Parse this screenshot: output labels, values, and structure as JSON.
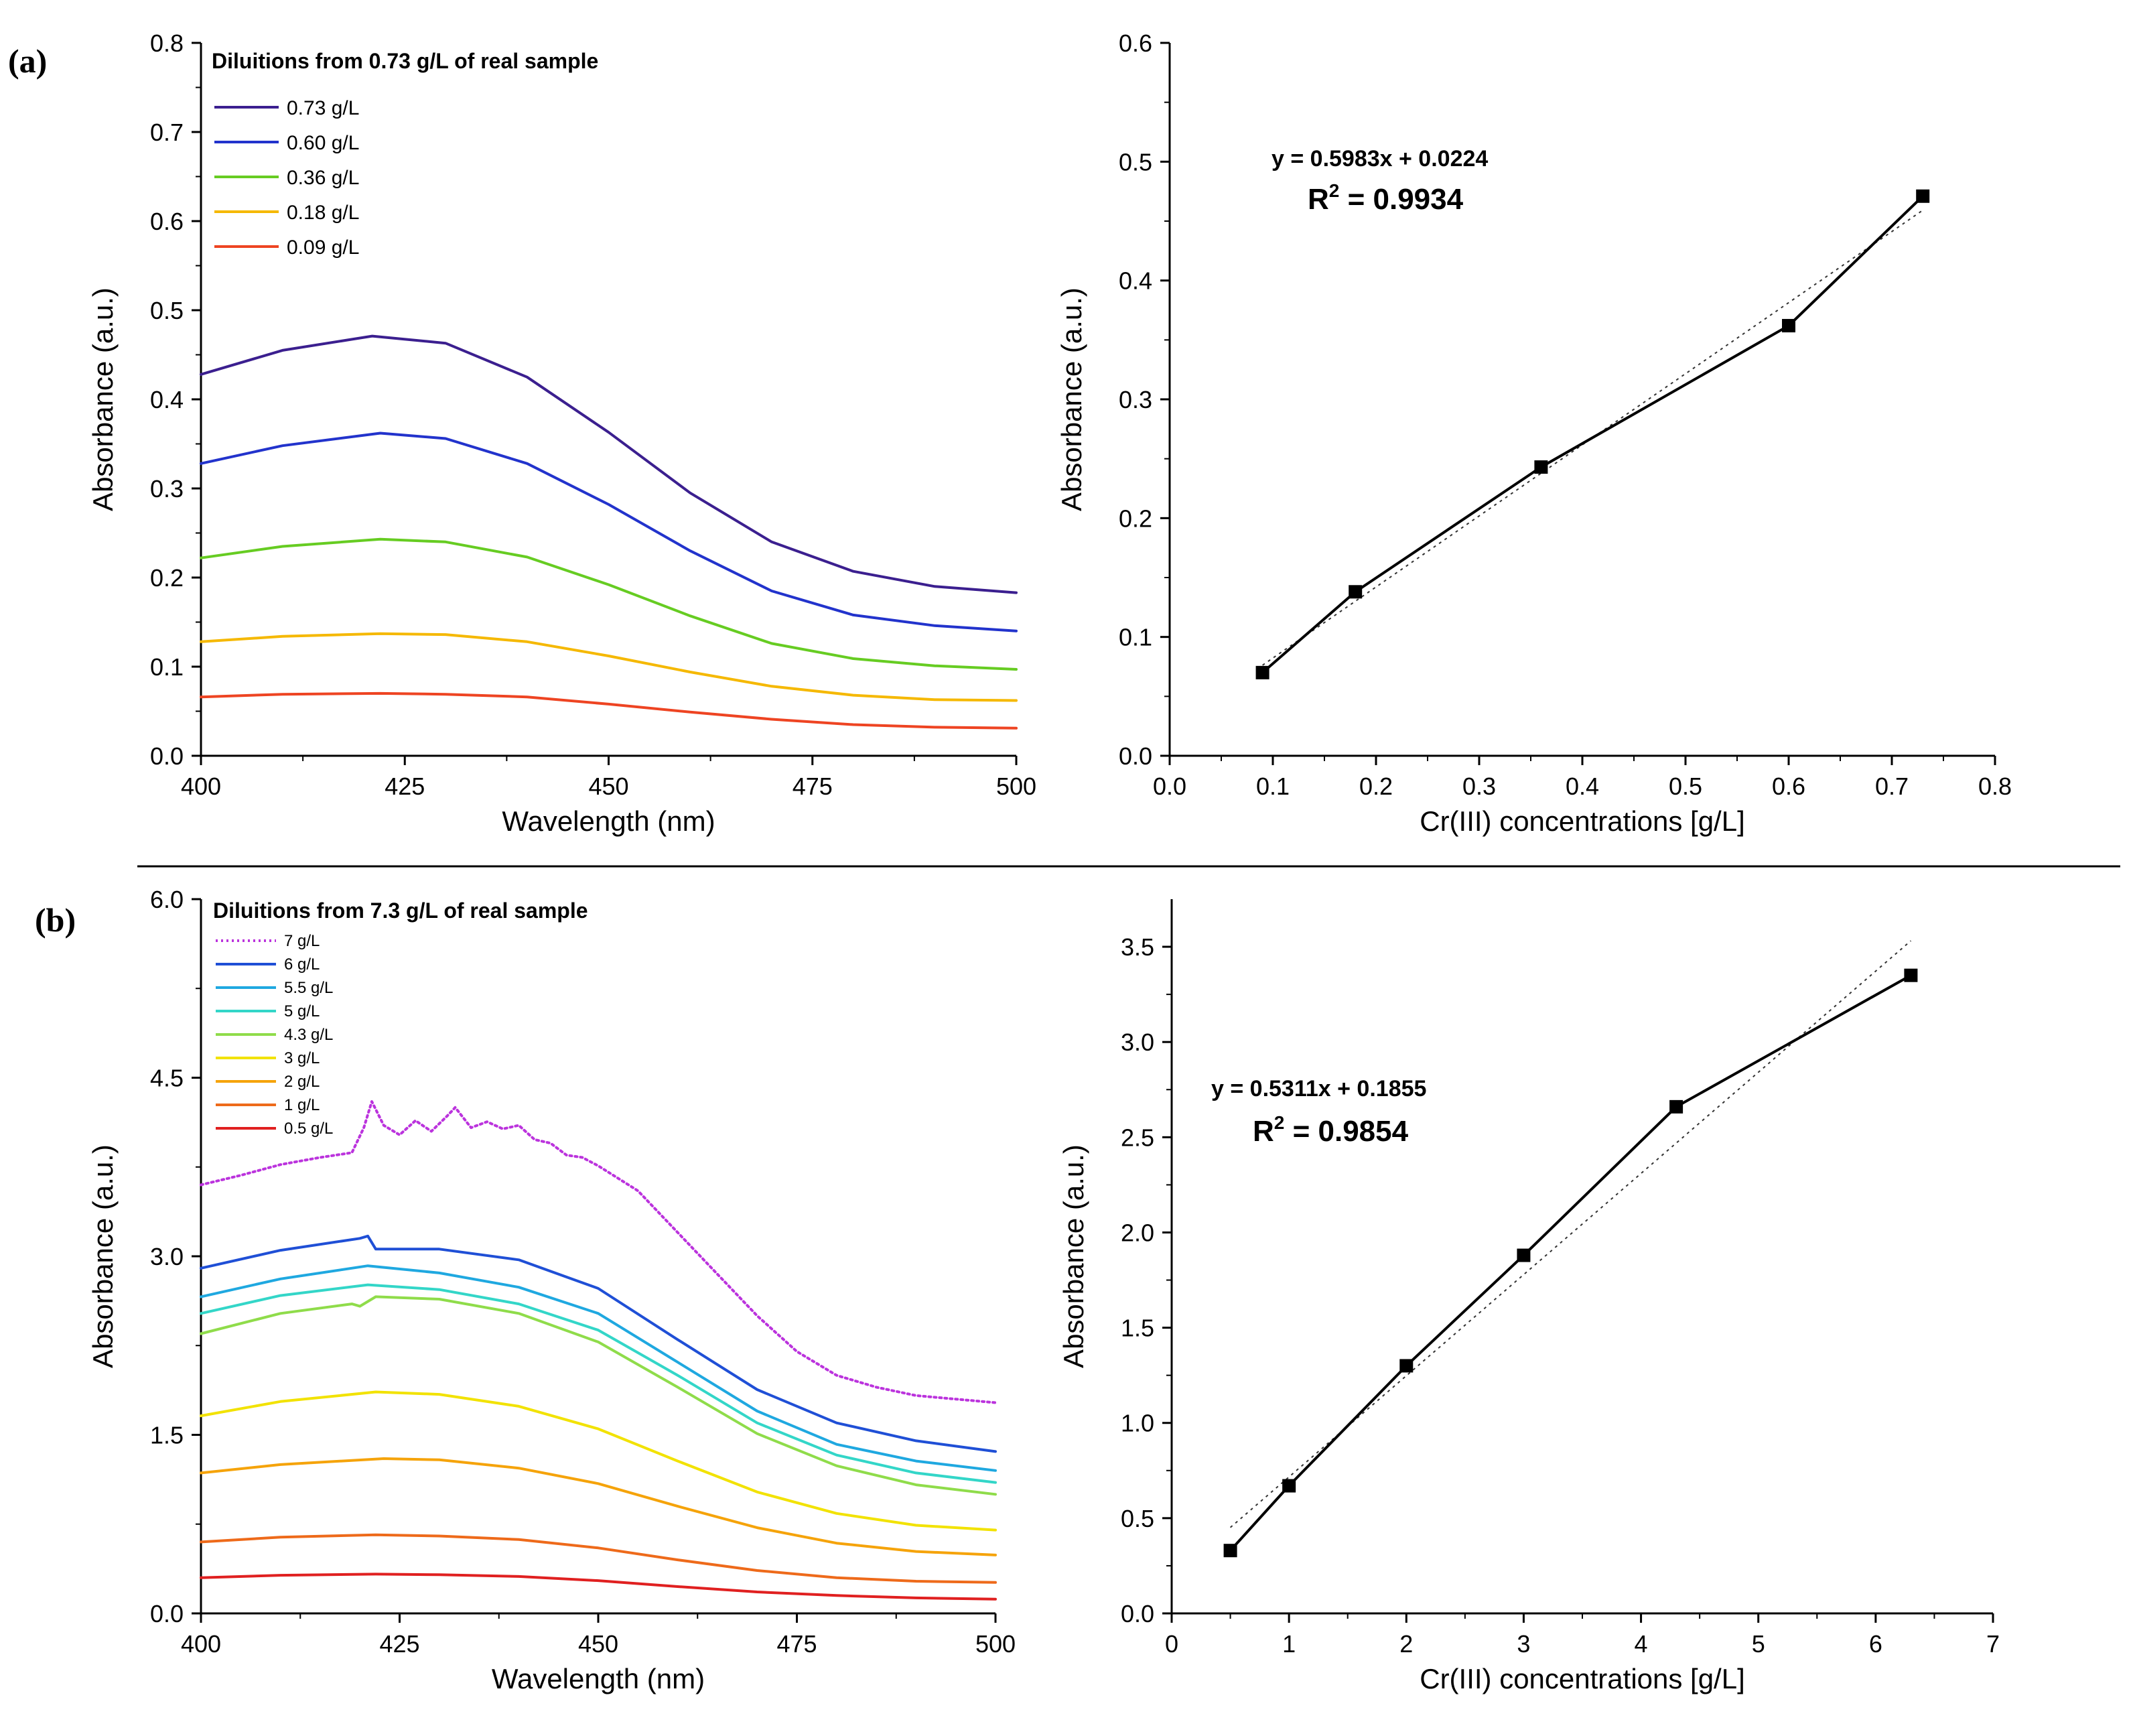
{
  "panels": {
    "a": {
      "label": "(a)"
    },
    "b": {
      "label": "(b)"
    }
  },
  "chart_data": [
    {
      "id": "a-spectra",
      "type": "line",
      "legend_title": "Diluitions from 0.73 g/L of real sample",
      "xlabel": "Wavelength (nm)",
      "ylabel": "Absorbance (a.u.)",
      "xlim": [
        400,
        500
      ],
      "ylim": [
        0,
        0.8
      ],
      "xticks": [
        400,
        425,
        450,
        475,
        500
      ],
      "xtick_labels": [
        "400",
        "425",
        "450",
        "475",
        "500"
      ],
      "yticks": [
        0,
        0.1,
        0.2,
        0.3,
        0.4,
        0.5,
        0.6,
        0.7,
        0.8
      ],
      "ytick_labels": [
        "0.0",
        "0.1",
        "0.2",
        "0.3",
        "0.4",
        "0.5",
        "0.6",
        "0.7",
        "0.8"
      ],
      "legend_position": "top-left",
      "series": [
        {
          "name": "0.73 g/L",
          "color": "#3b1f8f",
          "x": [
            400,
            410,
            421,
            430,
            440,
            450,
            460,
            470,
            480,
            490,
            500
          ],
          "y": [
            0.428,
            0.455,
            0.471,
            0.463,
            0.425,
            0.363,
            0.295,
            0.24,
            0.207,
            0.19,
            0.183
          ]
        },
        {
          "name": "0.60 g/L",
          "color": "#2233cc",
          "x": [
            400,
            410,
            422,
            430,
            440,
            450,
            460,
            470,
            480,
            490,
            500
          ],
          "y": [
            0.328,
            0.348,
            0.362,
            0.356,
            0.328,
            0.282,
            0.23,
            0.185,
            0.158,
            0.146,
            0.14
          ]
        },
        {
          "name": "0.36 g/L",
          "color": "#66cc22",
          "x": [
            400,
            410,
            422,
            430,
            440,
            450,
            460,
            470,
            480,
            490,
            500
          ],
          "y": [
            0.222,
            0.235,
            0.243,
            0.24,
            0.223,
            0.192,
            0.157,
            0.126,
            0.109,
            0.101,
            0.097
          ]
        },
        {
          "name": "0.18 g/L",
          "color": "#f5b800",
          "x": [
            400,
            410,
            422,
            430,
            440,
            450,
            460,
            470,
            480,
            490,
            500
          ],
          "y": [
            0.128,
            0.134,
            0.137,
            0.136,
            0.128,
            0.112,
            0.094,
            0.078,
            0.068,
            0.063,
            0.062
          ]
        },
        {
          "name": "0.09 g/L",
          "color": "#ee4422",
          "x": [
            400,
            410,
            422,
            430,
            440,
            450,
            460,
            470,
            480,
            490,
            500
          ],
          "y": [
            0.066,
            0.069,
            0.07,
            0.069,
            0.066,
            0.058,
            0.049,
            0.041,
            0.035,
            0.032,
            0.031
          ]
        }
      ]
    },
    {
      "id": "a-calibration",
      "type": "scatter",
      "xlabel": "Cr(III) concentrations [g/L]",
      "ylabel": "Absorbance (a.u.)",
      "xlim": [
        0,
        0.8
      ],
      "ylim": [
        0,
        0.6
      ],
      "xticks": [
        0,
        0.1,
        0.2,
        0.3,
        0.4,
        0.5,
        0.6,
        0.7,
        0.8
      ],
      "xtick_labels": [
        "0.0",
        "0.1",
        "0.2",
        "0.3",
        "0.4",
        "0.5",
        "0.6",
        "0.7",
        "0.8"
      ],
      "yticks": [
        0,
        0.1,
        0.2,
        0.3,
        0.4,
        0.5,
        0.6
      ],
      "ytick_labels": [
        "0.0",
        "0.1",
        "0.2",
        "0.3",
        "0.4",
        "0.5",
        "0.6"
      ],
      "x": [
        0.09,
        0.18,
        0.36,
        0.6,
        0.73
      ],
      "y": [
        0.07,
        0.138,
        0.243,
        0.362,
        0.471
      ],
      "fit": {
        "slope": 0.5983,
        "intercept": 0.0224,
        "x_range": [
          0.09,
          0.73
        ]
      },
      "equation": "y = 0.5983x + 0.0224",
      "r2_label": "R",
      "r2_exponent": "2",
      "r2_value": " = 0.9934"
    },
    {
      "id": "b-spectra",
      "type": "line",
      "legend_title": "Diluitions from 7.3 g/L of real sample",
      "xlabel": "Wavelength (nm)",
      "ylabel": "Absorbance (a.u.)",
      "xlim": [
        400,
        500
      ],
      "ylim": [
        0,
        6
      ],
      "xticks": [
        400,
        425,
        450,
        475,
        500
      ],
      "xtick_labels": [
        "400",
        "425",
        "450",
        "475",
        "500"
      ],
      "yticks": [
        0,
        1.5,
        3,
        4.5,
        6
      ],
      "ytick_labels": [
        "0.0",
        "1.5",
        "3.0",
        "4.5",
        "6.0"
      ],
      "legend_position": "top-left",
      "series": [
        {
          "name": "7 g/L",
          "color": "#bb33dd",
          "dashed": true,
          "x": [
            400,
            405,
            410,
            415,
            419,
            420.5,
            421.5,
            423,
            425,
            427,
            429,
            431,
            432,
            434,
            436,
            438,
            440,
            442,
            444,
            446,
            448,
            450,
            455,
            460,
            465,
            470,
            475,
            480,
            485,
            490,
            495,
            500
          ],
          "y": [
            3.6,
            3.68,
            3.77,
            3.83,
            3.87,
            4.08,
            4.3,
            4.1,
            4.02,
            4.14,
            4.05,
            4.18,
            4.25,
            4.08,
            4.13,
            4.07,
            4.1,
            3.98,
            3.95,
            3.85,
            3.83,
            3.76,
            3.55,
            3.2,
            2.85,
            2.5,
            2.2,
            2.0,
            1.9,
            1.83,
            1.8,
            1.77
          ]
        },
        {
          "name": "6 g/L",
          "color": "#1f4fd6",
          "x": [
            400,
            410,
            420,
            421,
            422,
            430,
            440,
            450,
            460,
            470,
            480,
            490,
            500
          ],
          "y": [
            2.9,
            3.05,
            3.15,
            3.17,
            3.06,
            3.06,
            2.97,
            2.73,
            2.3,
            1.88,
            1.6,
            1.45,
            1.36
          ]
        },
        {
          "name": "5.5 g/L",
          "color": "#1fa8e0",
          "x": [
            400,
            410,
            421,
            430,
            440,
            450,
            460,
            470,
            480,
            490,
            500
          ],
          "y": [
            2.66,
            2.81,
            2.92,
            2.86,
            2.74,
            2.52,
            2.11,
            1.7,
            1.42,
            1.28,
            1.2
          ]
        },
        {
          "name": "5 g/L",
          "color": "#33d6c8",
          "x": [
            400,
            410,
            421,
            430,
            440,
            450,
            460,
            470,
            480,
            490,
            500
          ],
          "y": [
            2.52,
            2.67,
            2.76,
            2.72,
            2.6,
            2.38,
            2.0,
            1.6,
            1.33,
            1.18,
            1.1
          ]
        },
        {
          "name": "4.3 g/L",
          "color": "#8fdc4a",
          "x": [
            400,
            410,
            419,
            420,
            422,
            430,
            440,
            450,
            460,
            470,
            480,
            490,
            500
          ],
          "y": [
            2.35,
            2.52,
            2.6,
            2.58,
            2.66,
            2.64,
            2.52,
            2.28,
            1.9,
            1.51,
            1.24,
            1.08,
            1.0
          ]
        },
        {
          "name": "3 g/L",
          "color": "#f2e200",
          "x": [
            400,
            410,
            422,
            430,
            440,
            450,
            460,
            470,
            480,
            490,
            500
          ],
          "y": [
            1.66,
            1.78,
            1.86,
            1.84,
            1.74,
            1.55,
            1.28,
            1.02,
            0.84,
            0.74,
            0.7
          ]
        },
        {
          "name": "2 g/L",
          "color": "#f5a30a",
          "x": [
            400,
            410,
            423,
            430,
            440,
            450,
            460,
            470,
            480,
            490,
            500
          ],
          "y": [
            1.18,
            1.25,
            1.3,
            1.29,
            1.22,
            1.09,
            0.9,
            0.72,
            0.59,
            0.52,
            0.49
          ]
        },
        {
          "name": "1 g/L",
          "color": "#ee6a1a",
          "x": [
            400,
            410,
            422,
            430,
            440,
            450,
            460,
            470,
            480,
            490,
            500
          ],
          "y": [
            0.6,
            0.64,
            0.66,
            0.65,
            0.62,
            0.55,
            0.45,
            0.36,
            0.3,
            0.27,
            0.26
          ]
        },
        {
          "name": "0.5 g/L",
          "color": "#e02020",
          "x": [
            400,
            410,
            422,
            430,
            440,
            450,
            460,
            470,
            480,
            490,
            500
          ],
          "y": [
            0.3,
            0.32,
            0.33,
            0.325,
            0.31,
            0.275,
            0.225,
            0.18,
            0.15,
            0.13,
            0.12
          ]
        }
      ]
    },
    {
      "id": "b-calibration",
      "type": "scatter",
      "xlabel": "Cr(III) concentrations [g/L]",
      "ylabel": "Absorbance (a.u.)",
      "xlim": [
        0,
        7
      ],
      "ylim": [
        0,
        3.75
      ],
      "xticks": [
        0,
        1,
        2,
        3,
        4,
        5,
        6,
        7
      ],
      "xtick_labels": [
        "0",
        "1",
        "2",
        "3",
        "4",
        "5",
        "6",
        "7"
      ],
      "yticks": [
        0,
        0.5,
        1,
        1.5,
        2,
        2.5,
        3,
        3.5
      ],
      "ytick_labels": [
        "0.0",
        "0.5",
        "1.0",
        "1.5",
        "2.0",
        "2.5",
        "3.0",
        "3.5"
      ],
      "x": [
        0.5,
        1,
        2,
        3,
        4.3,
        6.3
      ],
      "y": [
        0.33,
        0.67,
        1.3,
        1.88,
        2.66,
        3.35
      ],
      "fit": {
        "slope": 0.5311,
        "intercept": 0.1855,
        "x_range": [
          0.5,
          6.3
        ]
      },
      "equation": "y = 0.5311x + 0.1855",
      "r2_label": "R",
      "r2_exponent": "2",
      "r2_value": " = 0.9854"
    }
  ]
}
